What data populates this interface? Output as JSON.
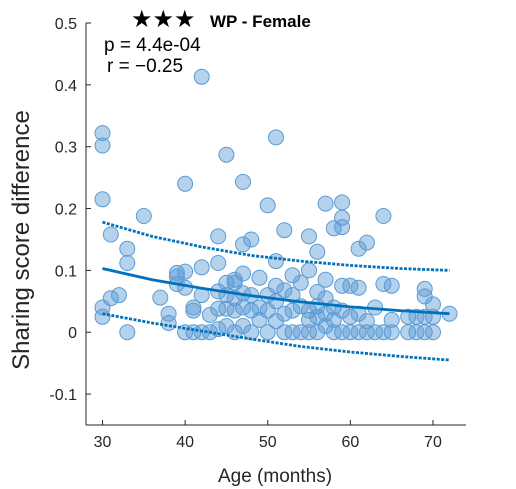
{
  "chart_data": {
    "type": "scatter",
    "title": "WP - Female",
    "significance": "★★★",
    "annotations": [
      "p = 4.4e-04",
      "r = −0.25"
    ],
    "xlabel": "Age (months)",
    "ylabel": "Sharing score difference",
    "xlim": [
      28,
      74
    ],
    "ylim": [
      -0.15,
      0.5
    ],
    "xticks": [
      30,
      40,
      50,
      60,
      70
    ],
    "yticks": [
      -0.1,
      0,
      0.1,
      0.2,
      0.3,
      0.4,
      0.5
    ],
    "ytick_labels": [
      "-0.1",
      "0",
      "0.1",
      "0.2",
      "0.3",
      "0.4",
      "0.5"
    ],
    "grid": false,
    "colors": {
      "points": "#5b9bd5",
      "fit": "#0072bd"
    },
    "points": [
      [
        30,
        0.322
      ],
      [
        30,
        0.302
      ],
      [
        30,
        0.215
      ],
      [
        30,
        0.04
      ],
      [
        30,
        0.025
      ],
      [
        31,
        0.158
      ],
      [
        31,
        0.055
      ],
      [
        32,
        0.06
      ],
      [
        33,
        0.135
      ],
      [
        33,
        0.112
      ],
      [
        33,
        0.0
      ],
      [
        35,
        0.188
      ],
      [
        37,
        0.056
      ],
      [
        38,
        0.03
      ],
      [
        38,
        0.015
      ],
      [
        39,
        0.096
      ],
      [
        39,
        0.09
      ],
      [
        39,
        0.078
      ],
      [
        40,
        0.24
      ],
      [
        40,
        0.098
      ],
      [
        40,
        0.072
      ],
      [
        40,
        0.0
      ],
      [
        41,
        0.04
      ],
      [
        41,
        0.035
      ],
      [
        41,
        0.0
      ],
      [
        42,
        0.413
      ],
      [
        42,
        0.105
      ],
      [
        42,
        0.06
      ],
      [
        42,
        0.0
      ],
      [
        43,
        0.028
      ],
      [
        43,
        0.0
      ],
      [
        44,
        0.155
      ],
      [
        44,
        0.112
      ],
      [
        44,
        0.066
      ],
      [
        44,
        0.038
      ],
      [
        44,
        0.005
      ],
      [
        45,
        0.287
      ],
      [
        45,
        0.08
      ],
      [
        45,
        0.06
      ],
      [
        45,
        0.038
      ],
      [
        45,
        0.01
      ],
      [
        46,
        0.085
      ],
      [
        46,
        0.08
      ],
      [
        46,
        0.055
      ],
      [
        46,
        0.035
      ],
      [
        46,
        0.0
      ],
      [
        47,
        0.243
      ],
      [
        47,
        0.142
      ],
      [
        47,
        0.095
      ],
      [
        47,
        0.063
      ],
      [
        47,
        0.04
      ],
      [
        47,
        0.01
      ],
      [
        48,
        0.15
      ],
      [
        48,
        0.06
      ],
      [
        48,
        0.035
      ],
      [
        48,
        0.0
      ],
      [
        49,
        0.088
      ],
      [
        49,
        0.04
      ],
      [
        49,
        0.02
      ],
      [
        50,
        0.205
      ],
      [
        50,
        0.06
      ],
      [
        50,
        0.035
      ],
      [
        50,
        0.0
      ],
      [
        51,
        0.315
      ],
      [
        51,
        0.115
      ],
      [
        51,
        0.075
      ],
      [
        51,
        0.05
      ],
      [
        51,
        0.018
      ],
      [
        52,
        0.165
      ],
      [
        52,
        0.068
      ],
      [
        52,
        0.03
      ],
      [
        52,
        0.0
      ],
      [
        53,
        0.092
      ],
      [
        53,
        0.06
      ],
      [
        53,
        0.035
      ],
      [
        53,
        0.0
      ],
      [
        54,
        0.08
      ],
      [
        54,
        0.042
      ],
      [
        54,
        0.0
      ],
      [
        55,
        0.155
      ],
      [
        55,
        0.1
      ],
      [
        55,
        0.035
      ],
      [
        55,
        0.02
      ],
      [
        55,
        0.0
      ],
      [
        56,
        0.13
      ],
      [
        56,
        0.065
      ],
      [
        56,
        0.042
      ],
      [
        56,
        0.025
      ],
      [
        56,
        0.0
      ],
      [
        57,
        0.208
      ],
      [
        57,
        0.085
      ],
      [
        57,
        0.055
      ],
      [
        57,
        0.03
      ],
      [
        57,
        0.01
      ],
      [
        58,
        0.168
      ],
      [
        58,
        0.04
      ],
      [
        58,
        0.02
      ],
      [
        58,
        0.0
      ],
      [
        59,
        0.21
      ],
      [
        59,
        0.185
      ],
      [
        59,
        0.17
      ],
      [
        59,
        0.075
      ],
      [
        59,
        0.035
      ],
      [
        59,
        0.0
      ],
      [
        60,
        0.075
      ],
      [
        60,
        0.025
      ],
      [
        60,
        0.0
      ],
      [
        61,
        0.135
      ],
      [
        61,
        0.072
      ],
      [
        61,
        0.03
      ],
      [
        61,
        0.0
      ],
      [
        62,
        0.145
      ],
      [
        62,
        0.018
      ],
      [
        62,
        0.0
      ],
      [
        63,
        0.04
      ],
      [
        63,
        0.0
      ],
      [
        64,
        0.188
      ],
      [
        64,
        0.078
      ],
      [
        64,
        0.0
      ],
      [
        65,
        0.075
      ],
      [
        65,
        0.02
      ],
      [
        65,
        0.0
      ],
      [
        67,
        0.025
      ],
      [
        67,
        0.0
      ],
      [
        68,
        0.025
      ],
      [
        68,
        0.0
      ],
      [
        69,
        0.07
      ],
      [
        69,
        0.058
      ],
      [
        69,
        0.025
      ],
      [
        69,
        0.0
      ],
      [
        70,
        0.045
      ],
      [
        70,
        0.025
      ],
      [
        70,
        0.0
      ],
      [
        72,
        0.03
      ]
    ],
    "fit": {
      "x": [
        30,
        36,
        42,
        48,
        54,
        60,
        66,
        72
      ],
      "y": [
        0.103,
        0.085,
        0.071,
        0.059,
        0.049,
        0.041,
        0.035,
        0.03
      ]
    },
    "ci_upper": {
      "x": [
        30,
        36,
        42,
        48,
        54,
        60,
        66,
        72
      ],
      "y": [
        0.178,
        0.155,
        0.138,
        0.124,
        0.115,
        0.108,
        0.103,
        0.1
      ]
    },
    "ci_lower": {
      "x": [
        30,
        36,
        42,
        48,
        54,
        60,
        66,
        72
      ],
      "y": [
        0.03,
        0.015,
        0.002,
        -0.011,
        -0.023,
        -0.032,
        -0.039,
        -0.045
      ]
    }
  }
}
